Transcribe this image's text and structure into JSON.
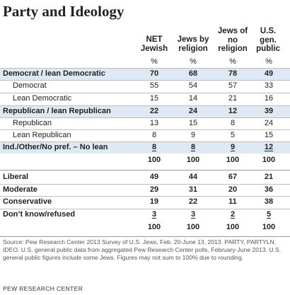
{
  "title": "Party and Ideology",
  "columns": [
    {
      "lines": [
        "NET",
        "Jewish"
      ]
    },
    {
      "lines": [
        "Jews by",
        "religion"
      ]
    },
    {
      "lines": [
        "Jews of",
        "no",
        "religion"
      ]
    },
    {
      "lines": [
        "U.S.",
        "gen.",
        "public"
      ]
    }
  ],
  "rows": [
    {
      "label": "",
      "values": [
        "%",
        "%",
        "%",
        "%"
      ]
    },
    {
      "label": "Democrat / lean Democratic",
      "values": [
        "70",
        "68",
        "78",
        "49"
      ]
    },
    {
      "label": "Democrat",
      "values": [
        "55",
        "54",
        "57",
        "33"
      ]
    },
    {
      "label": "Lean Democratic",
      "values": [
        "15",
        "14",
        "21",
        "16"
      ]
    },
    {
      "label": "Republican / lean Republican",
      "values": [
        "22",
        "24",
        "12",
        "39"
      ]
    },
    {
      "label": "Republican",
      "values": [
        "13",
        "15",
        "8",
        "24"
      ]
    },
    {
      "label": "Lean Republican",
      "values": [
        "8",
        "9",
        "5",
        "15"
      ]
    },
    {
      "label": "Ind./Other/No pref. – No lean",
      "values": [
        "8",
        "8",
        "9",
        "12"
      ]
    },
    {
      "label": "",
      "values": [
        "100",
        "100",
        "100",
        "100"
      ]
    },
    {
      "label": "Liberal",
      "values": [
        "49",
        "44",
        "67",
        "21"
      ]
    },
    {
      "label": "Moderate",
      "values": [
        "29",
        "31",
        "20",
        "36"
      ]
    },
    {
      "label": "Conservative",
      "values": [
        "19",
        "22",
        "11",
        "38"
      ]
    },
    {
      "label": "Don’t know/refused",
      "values": [
        "3",
        "3",
        "2",
        "5"
      ]
    },
    {
      "label": "",
      "values": [
        "100",
        "100",
        "100",
        "100"
      ]
    }
  ],
  "source": "Source: Pew Research Center 2013 Survey of U.S. Jews, Feb. 20-June 13, 2013. PARTY, PARTYLN, IDEO. U.S. general public data from aggregated Pew Research Center polls, February-June 2013. U.S. general public figures include some Jews. Figures may not sum to 100% due to rounding.",
  "brand": "PEW RESEARCH CENTER"
}
